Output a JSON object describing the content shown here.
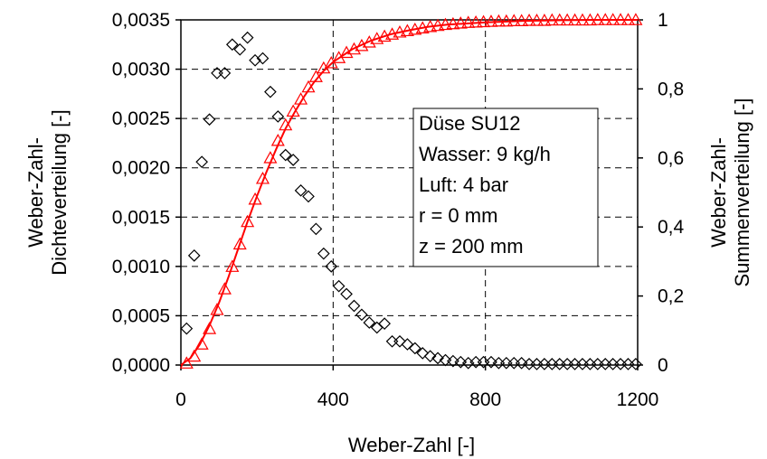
{
  "chart_data": {
    "type": "scatter",
    "title": "",
    "xlabel": "Weber-Zahl [-]",
    "ylabel_left": [
      "Weber-Zahl-",
      "Dichteverteilung [-]"
    ],
    "ylabel_right": [
      "Weber-Zahl-",
      "Summenverteilung [-]"
    ],
    "xlim": [
      0,
      1200
    ],
    "ylim_left": [
      0,
      0.0035
    ],
    "ylim_right": [
      0,
      1
    ],
    "x_ticks": [
      "0",
      "400",
      "800",
      "1200"
    ],
    "y_ticks_left": [
      "0,0000",
      "0,0005",
      "0,0010",
      "0,0015",
      "0,0020",
      "0,0025",
      "0,0030",
      "0,0035"
    ],
    "y_ticks_right": [
      "0",
      "0,2",
      "0,4",
      "0,6",
      "0,8",
      "1"
    ],
    "grid": true,
    "annotation": [
      "Düse SU12",
      "Wasser: 9 kg/h",
      "Luft: 4 bar",
      "r = 0 mm",
      "z = 200 mm"
    ],
    "colors": {
      "density": "#000000",
      "cumulative": "#ff0000"
    },
    "series": [
      {
        "axis": "left",
        "marker": "diamond",
        "x": [
          15,
          35,
          55,
          75,
          95,
          115,
          135,
          155,
          175,
          195,
          215,
          235,
          255,
          275,
          295,
          315,
          335,
          355,
          375,
          395,
          415,
          435,
          455,
          475,
          495,
          515,
          535,
          555,
          575,
          595,
          615,
          635,
          655,
          675,
          695,
          715,
          735,
          755,
          775,
          795,
          815,
          835,
          855,
          875,
          895,
          915,
          935,
          955,
          975,
          995,
          1015,
          1035,
          1055,
          1075,
          1095,
          1115,
          1135,
          1155,
          1175,
          1195
        ],
        "y": [
          0.00037,
          0.00111,
          0.00206,
          0.00249,
          0.00296,
          0.00296,
          0.00325,
          0.0032,
          0.00332,
          0.00309,
          0.00311,
          0.00277,
          0.00252,
          0.00213,
          0.00208,
          0.00177,
          0.00171,
          0.00138,
          0.00113,
          0.001,
          0.0008,
          0.00072,
          0.0006,
          0.00051,
          0.00043,
          0.00038,
          0.00042,
          0.00024,
          0.00024,
          0.00021,
          0.00017,
          0.00012,
          9e-05,
          7e-05,
          5e-05,
          4e-05,
          3e-05,
          2e-05,
          3e-05,
          3e-05,
          3e-05,
          2e-05,
          2e-05,
          2e-05,
          2e-05,
          1e-05,
          1e-05,
          1e-05,
          1e-05,
          1e-05,
          1e-05,
          1e-05,
          1e-05,
          1e-05,
          1e-05,
          1e-05,
          1e-05,
          1e-05,
          1e-05,
          1e-05
        ]
      },
      {
        "axis": "right",
        "marker": "triangle",
        "x": [
          15,
          35,
          55,
          75,
          95,
          115,
          135,
          155,
          175,
          195,
          215,
          235,
          255,
          275,
          295,
          315,
          335,
          355,
          375,
          395,
          415,
          435,
          455,
          475,
          495,
          515,
          535,
          555,
          575,
          595,
          615,
          635,
          655,
          675,
          695,
          715,
          735,
          755,
          775,
          795,
          815,
          835,
          855,
          875,
          895,
          915,
          935,
          955,
          975,
          995,
          1015,
          1035,
          1055,
          1075,
          1095,
          1115,
          1135,
          1155,
          1175,
          1195
        ],
        "y": [
          0.005,
          0.025,
          0.06,
          0.105,
          0.16,
          0.22,
          0.285,
          0.35,
          0.415,
          0.48,
          0.54,
          0.6,
          0.65,
          0.695,
          0.735,
          0.77,
          0.805,
          0.835,
          0.86,
          0.875,
          0.89,
          0.905,
          0.915,
          0.925,
          0.935,
          0.945,
          0.952,
          0.958,
          0.964,
          0.968,
          0.972,
          0.976,
          0.98,
          0.983,
          0.986,
          0.988,
          0.99,
          0.992,
          0.993,
          0.994,
          0.995,
          0.996,
          0.996,
          0.997,
          0.997,
          0.998,
          0.998,
          0.998,
          0.999,
          0.999,
          0.999,
          0.999,
          0.999,
          0.999,
          1.0,
          1.0,
          1.0,
          1.0,
          1.0,
          1.0
        ]
      },
      {
        "axis": "right",
        "marker": "line",
        "x": [
          0,
          25,
          50,
          75,
          100,
          125,
          150,
          175,
          200,
          225,
          250,
          275,
          300,
          325,
          350,
          375,
          400,
          450,
          500,
          550,
          600,
          650,
          700,
          800,
          900,
          1000,
          1100,
          1200
        ],
        "y": [
          0.0,
          0.02,
          0.06,
          0.115,
          0.18,
          0.255,
          0.335,
          0.415,
          0.49,
          0.56,
          0.625,
          0.685,
          0.735,
          0.78,
          0.82,
          0.852,
          0.878,
          0.915,
          0.94,
          0.958,
          0.97,
          0.98,
          0.986,
          0.993,
          0.997,
          0.999,
          1.0,
          1.0
        ]
      }
    ]
  }
}
